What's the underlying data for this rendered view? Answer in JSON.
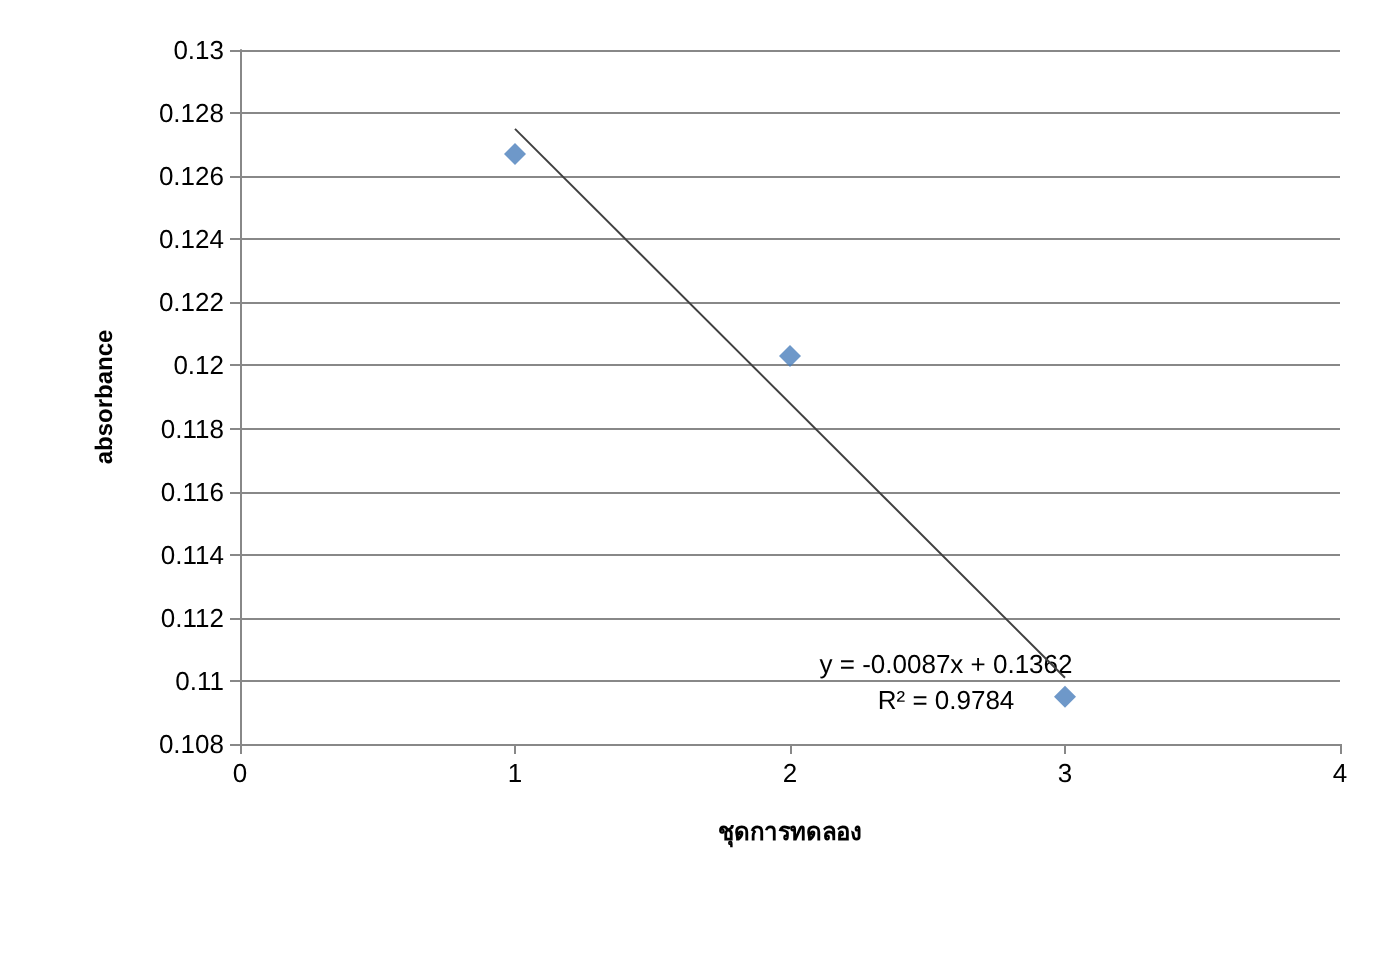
{
  "chart_data": {
    "type": "scatter",
    "xlabel": "ชุดการทดลอง",
    "ylabel": "absorbance",
    "xlim": [
      0,
      4
    ],
    "xticks": [
      0,
      1,
      2,
      3,
      4
    ],
    "ylim": [
      0.108,
      0.13
    ],
    "yticks": [
      0.108,
      0.11,
      0.112,
      0.114,
      0.116,
      0.118,
      0.12,
      0.122,
      0.124,
      0.126,
      0.128,
      0.13
    ],
    "grid": "y",
    "series": [
      {
        "marker": "diamond",
        "color": "#4a7ebb",
        "x": [
          1,
          2,
          3
        ],
        "values": [
          0.1267,
          0.1203,
          0.1095
        ]
      },
      {
        "type": "line",
        "color": "#404040",
        "x": [
          1,
          3
        ],
        "values": [
          0.1275,
          0.1101
        ]
      }
    ],
    "annotations": [
      "y = -0.0087x + 0.1362",
      "R² = 0.9784"
    ]
  }
}
